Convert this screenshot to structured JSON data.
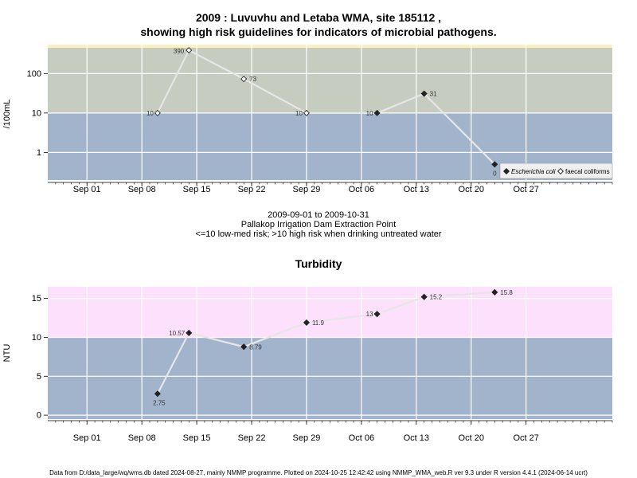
{
  "header": {
    "title_line1": "2009 : Luvuvhu and Letaba WMA, site 185112 ,",
    "title_line2": "showing high risk guidelines for indicators of microbial pathogens."
  },
  "subtitle": {
    "date_range": "2009-09-01 to 2009-10-31",
    "site_name": "Pallakop Irrigation Dam Extraction Point",
    "risk_note": "<=10 low-med risk; >10 high risk when drinking untreated water"
  },
  "turbidity_title": "Turbidity",
  "footer": "Data from D:/data_large/wq/wms.db dated 2024-08-27, mainly NMMP programme. Plotted on 2024-10-25 12:42:42 using NMMP_WMA_web.R ver 9.3 under R version 4.4.1 (2024-06-14 ucrt)",
  "colors": {
    "low_band": "#a2b4cc",
    "high_band_microbial": "#c6cdc0",
    "high_band_turbidity": "#fce0fc",
    "top_strip": "#fbf1c0",
    "line": "#e6e6e6",
    "grid": "#ffffff"
  },
  "chart_data": [
    {
      "type": "line",
      "title": "",
      "ylabel": "/100mL",
      "yscale": "log",
      "ylim": [
        0.2,
        450
      ],
      "yticks": [
        1,
        10,
        100
      ],
      "ytick_labels": [
        "1",
        "10",
        "100"
      ],
      "risk_threshold": 10,
      "xlim": [
        "2009-08-27",
        "2009-11-07"
      ],
      "xtick_labels": [
        "Sep 01",
        "Sep 08",
        "Sep 15",
        "Sep 22",
        "Sep 29",
        "Oct 06",
        "Oct 13",
        "Oct 20",
        "Oct 27"
      ],
      "grid": true,
      "legend_position": "bottom-right",
      "series": [
        {
          "name": "Escherichia coli",
          "marker": "filled-diamond",
          "x": [
            "2009-10-08",
            "2009-10-14",
            "2009-10-23"
          ],
          "y": [
            10,
            31,
            0.5
          ],
          "labels": [
            "10",
            "31",
            "0"
          ]
        },
        {
          "name": "faecal coliforms",
          "marker": "open-diamond",
          "x": [
            "2009-09-10",
            "2009-09-14",
            "2009-09-21",
            "2009-09-29"
          ],
          "y": [
            10,
            390,
            73,
            10
          ],
          "labels": [
            "10",
            "390",
            "73",
            "10"
          ]
        }
      ],
      "connector": {
        "x": [
          "2009-09-10",
          "2009-09-14",
          "2009-09-21",
          "2009-09-29",
          "2009-10-08",
          "2009-10-14",
          "2009-10-23"
        ],
        "y": [
          10,
          390,
          73,
          10,
          10,
          31,
          0.5
        ]
      }
    },
    {
      "type": "line",
      "title": "Turbidity",
      "ylabel": "NTU",
      "yscale": "linear",
      "ylim": [
        -0.5,
        16.5
      ],
      "yticks": [
        0,
        5,
        10,
        15
      ],
      "ytick_labels": [
        "0",
        "5",
        "10",
        "15"
      ],
      "risk_threshold": 10,
      "xlim": [
        "2009-08-27",
        "2009-11-07"
      ],
      "xtick_labels": [
        "Sep 01",
        "Sep 08",
        "Sep 15",
        "Sep 22",
        "Sep 29",
        "Oct 06",
        "Oct 13",
        "Oct 20",
        "Oct 27"
      ],
      "grid": true,
      "series": [
        {
          "name": "",
          "marker": "filled-diamond",
          "x": [
            "2009-09-10",
            "2009-09-14",
            "2009-09-21",
            "2009-09-29",
            "2009-10-08",
            "2009-10-14",
            "2009-10-23"
          ],
          "y": [
            2.75,
            10.57,
            8.79,
            11.9,
            13,
            15.2,
            15.8
          ],
          "labels": [
            "2.75",
            "10.57",
            "8.79",
            "11.9",
            "13",
            "15.2",
            "15.8"
          ]
        }
      ]
    }
  ]
}
